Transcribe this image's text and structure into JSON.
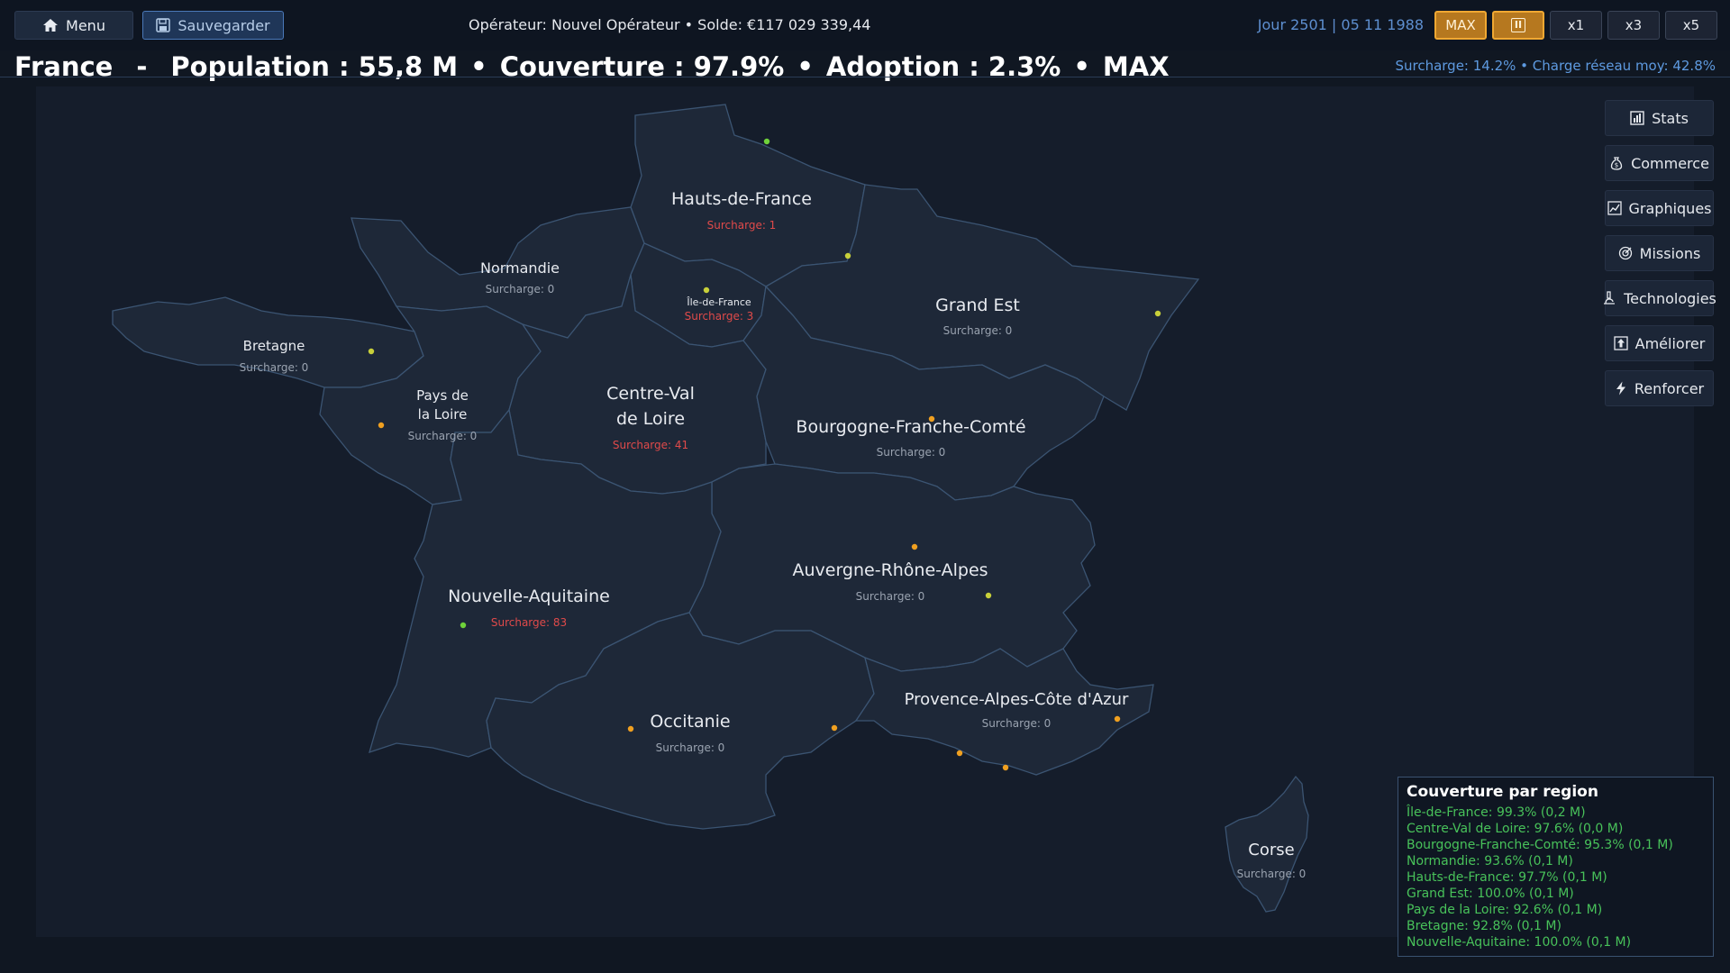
{
  "topbar": {
    "menu_label": "Menu",
    "save_label": "Sauvegarder",
    "operator_text": "Opérateur: Nouvel Opérateur  •  Solde: €117 029 339,44",
    "day_text": "Jour 2501  |  05 11 1988",
    "max_label": "MAX",
    "pause_symbol": "II",
    "speed_x1": "x1",
    "speed_x3": "x3",
    "speed_x5": "x5"
  },
  "headline": {
    "country": "France",
    "dash": "-",
    "population": "Population : 55,8 M",
    "coverage": "Couverture : 97.9%",
    "adoption": "Adoption : 2.3%",
    "mode": "MAX",
    "bullet": "•"
  },
  "right_stats": "Surcharge: 14.2%  •  Charge réseau moy: 42.8%",
  "side_menu": {
    "stats": "Stats",
    "commerce": "Commerce",
    "graphiques": "Graphiques",
    "missions": "Missions",
    "technologies": "Technologies",
    "ameliorer": "Améliorer",
    "renforcer": "Renforcer"
  },
  "regions": {
    "hauts_de_france": {
      "name": "Hauts-de-France",
      "surcharge": "Surcharge: 1"
    },
    "normandie": {
      "name": "Normandie",
      "surcharge": "Surcharge: 0"
    },
    "ile_de_france": {
      "name": "Île-de-France",
      "surcharge": "Surcharge: 3"
    },
    "grand_est": {
      "name": "Grand Est",
      "surcharge": "Surcharge: 0"
    },
    "bretagne": {
      "name": "Bretagne",
      "surcharge": "Surcharge: 0"
    },
    "pays_de_la_loire": {
      "name_l1": "Pays de",
      "name_l2": "la Loire",
      "surcharge": "Surcharge: 0"
    },
    "centre_val_de_loire": {
      "name_l1": "Centre-Val",
      "name_l2": "de Loire",
      "surcharge": "Surcharge: 41"
    },
    "bourgogne_franche_comte": {
      "name": "Bourgogne-Franche-Comté",
      "surcharge": "Surcharge: 0"
    },
    "auvergne_rhone_alpes": {
      "name": "Auvergne-Rhône-Alpes",
      "surcharge": "Surcharge: 0"
    },
    "nouvelle_aquitaine": {
      "name": "Nouvelle-Aquitaine",
      "surcharge": "Surcharge: 83"
    },
    "occitanie": {
      "name": "Occitanie",
      "surcharge": "Surcharge: 0"
    },
    "paca": {
      "name": "Provence-Alpes-Côte d'Azur",
      "surcharge": "Surcharge: 0"
    },
    "corse": {
      "name": "Corse",
      "surcharge": "Surcharge: 0"
    }
  },
  "coverage_panel": {
    "title": "Couverture par region",
    "items": [
      "Île-de-France: 99.3% (0,2 M)",
      "Centre-Val de Loire: 97.6% (0,0 M)",
      "Bourgogne-Franche-Comté: 95.3% (0,1 M)",
      "Normandie: 93.6% (0,1 M)",
      "Hauts-de-France: 97.7% (0,1 M)",
      "Grand Est: 100.0% (0,1 M)",
      "Pays de la Loire: 92.6% (0,1 M)",
      "Bretagne: 92.8% (0,1 M)",
      "Nouvelle-Aquitaine: 100.0% (0,1 M)"
    ]
  },
  "colors": {
    "accent": "#f0a832",
    "warning_text": "#e04a4a",
    "coverage_text": "#48c25a",
    "link_blue": "#5e9ae0"
  }
}
